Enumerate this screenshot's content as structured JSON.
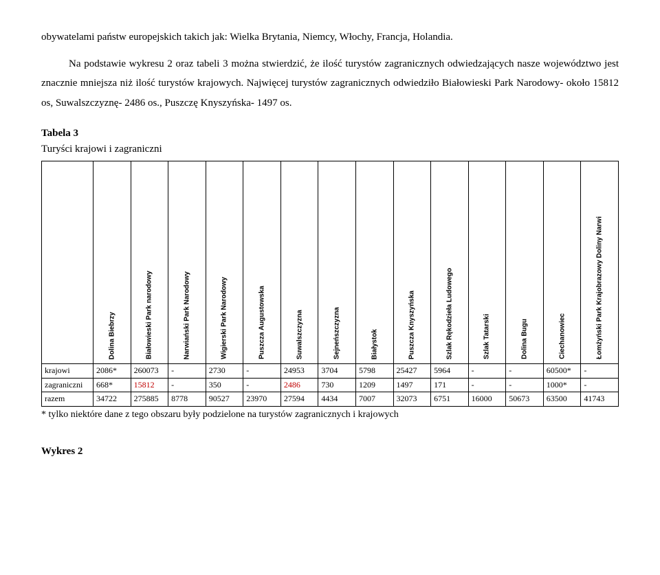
{
  "paragraphs": {
    "p1": "obywatelami państw europejskich takich jak: Wielka Brytania, Niemcy, Włochy, Francja, Holandia.",
    "p2": "Na podstawie wykresu 2 oraz tabeli 3 można stwierdzić, że ilość turystów zagranicznych odwiedzających nasze województwo jest znacznie mniejsza niż ilość turystów krajowych. Najwięcej turystów zagranicznych odwiedziło Białowieski Park Narodowy- około 15812 os, Suwalszczyznę- 2486 os., Puszczę Knyszyńska- 1497 os."
  },
  "tabela_title": "Tabela 3",
  "subtitle": "Turyści krajowi i zagraniczni",
  "columns": [
    "Dolina Biebrzy",
    "Białowieski Park narodowy",
    "Narwiański Park Narodowy",
    "Wigierski Park Narodowy",
    "Puszcza Augustowska",
    "Suwalszczyzna",
    "Sejneńszczyzna",
    "Białystok",
    "Puszcza Knyszyńska",
    "Szlak Rękodzieła Ludowego",
    "Szlak Tatarski",
    "Dolina Bugu",
    "Ciechanowiec",
    "Łomżyński Park Krajobrazowy Doliny Narwi"
  ],
  "rows": [
    {
      "label": "krajowi",
      "cells": [
        "2086*",
        "260073",
        "-",
        "2730",
        "-",
        "24953",
        "3704",
        "5798",
        "25427",
        "5964",
        "-",
        "-",
        "60500*",
        "-"
      ],
      "red": []
    },
    {
      "label": "zagraniczni",
      "cells": [
        "668*",
        "15812",
        "-",
        "350",
        "-",
        "2486",
        "730",
        "1209",
        "1497",
        "171",
        "-",
        "-",
        "1000*",
        "-"
      ],
      "red": [
        1,
        5
      ]
    },
    {
      "label": "razem",
      "cells": [
        "34722",
        "275885",
        "8778",
        "90527",
        "23970",
        "27594",
        "4434",
        "7007",
        "32073",
        "6751",
        "16000",
        "50673",
        "63500",
        "41743"
      ],
      "red": []
    }
  ],
  "note": "* tylko niektóre dane z tego obszaru były podzielone na turystów zagranicznych i krajowych",
  "wykres": "Wykres 2"
}
